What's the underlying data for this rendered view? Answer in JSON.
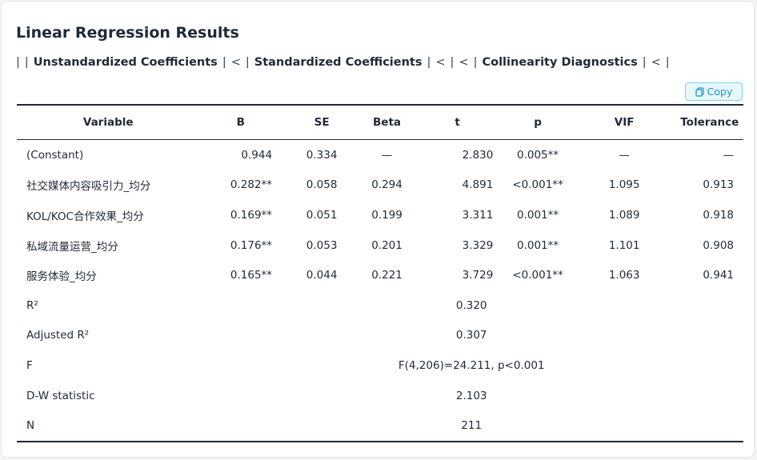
{
  "card": {
    "title": "Linear Regression Results",
    "header_segments": [
      "|",
      "|",
      "Unstandardized Coefficients",
      "|",
      "<",
      "|",
      "Standardized Coefficients",
      "|",
      "<",
      "|",
      "<",
      "|",
      "Collinearity Diagnostics",
      "|",
      "<",
      "|"
    ],
    "copy_button": "Copy",
    "table": {
      "columns": [
        "Variable",
        "B",
        "SE",
        "Beta",
        "t",
        "p",
        "VIF",
        "Tolerance"
      ],
      "rows": [
        [
          "(Constant)",
          "0.944",
          "0.334",
          "—",
          "2.830",
          "0.005**",
          "—",
          "—"
        ],
        [
          "社交媒体内容吸引力_均分",
          "0.282**",
          "0.058",
          "0.294",
          "4.891",
          "<0.001**",
          "1.095",
          "0.913"
        ],
        [
          "KOL/KOC合作效果_均分",
          "0.169**",
          "0.051",
          "0.199",
          "3.311",
          "0.001**",
          "1.089",
          "0.918"
        ],
        [
          "私域流量运营_均分",
          "0.176**",
          "0.053",
          "0.201",
          "3.329",
          "0.001**",
          "1.101",
          "0.908"
        ],
        [
          "服务体验_均分",
          "0.165**",
          "0.044",
          "0.221",
          "3.729",
          "<0.001**",
          "1.063",
          "0.941"
        ]
      ],
      "stats": [
        [
          "R²",
          "0.320"
        ],
        [
          "Adjusted R²",
          "0.307"
        ],
        [
          "F",
          "F(4,206)=24.211, p<0.001"
        ],
        [
          "D-W statistic",
          "2.103"
        ],
        [
          "N",
          "211"
        ]
      ]
    }
  }
}
